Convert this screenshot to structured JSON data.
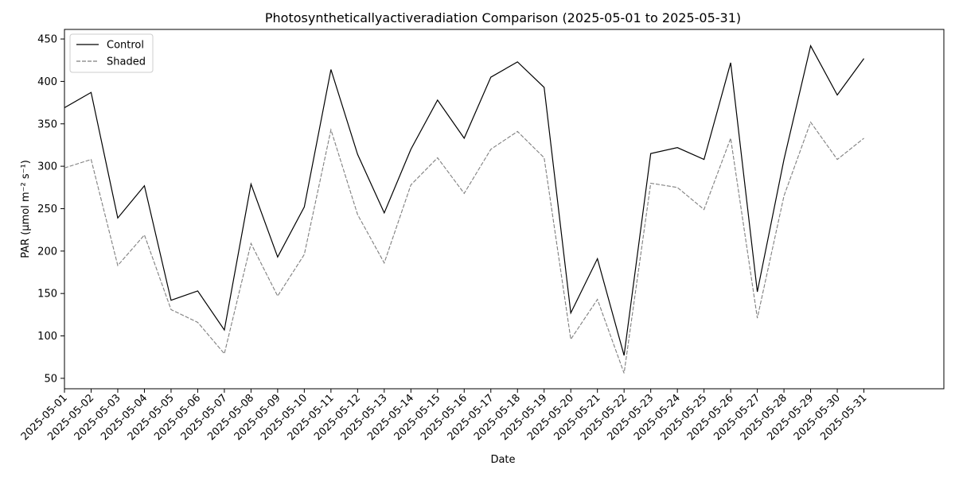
{
  "chart_data": {
    "type": "line",
    "title": "Photosyntheticallyactiveradiation Comparison (2025-05-01 to 2025-05-31)",
    "xlabel": "Date",
    "ylabel": "PAR (µmol m⁻² s⁻¹)",
    "x": [
      "2025-05-01",
      "2025-05-02",
      "2025-05-03",
      "2025-05-04",
      "2025-05-05",
      "2025-05-06",
      "2025-05-07",
      "2025-05-08",
      "2025-05-09",
      "2025-05-10",
      "2025-05-11",
      "2025-05-12",
      "2025-05-13",
      "2025-05-14",
      "2025-05-15",
      "2025-05-16",
      "2025-05-17",
      "2025-05-18",
      "2025-05-19",
      "2025-05-20",
      "2025-05-21",
      "2025-05-22",
      "2025-05-23",
      "2025-05-24",
      "2025-05-25",
      "2025-05-26",
      "2025-05-27",
      "2025-05-28",
      "2025-05-29",
      "2025-05-30",
      "2025-05-31"
    ],
    "series": [
      {
        "name": "Control",
        "color": "#000000",
        "style": "solid",
        "values": [
          369,
          387,
          239,
          277,
          142,
          153,
          107,
          279,
          193,
          252,
          414,
          314,
          245,
          320,
          378,
          333,
          405,
          423,
          393,
          127,
          191,
          77,
          315,
          322,
          308,
          422,
          152,
          308,
          442,
          384,
          427
        ]
      },
      {
        "name": "Shaded",
        "color": "#7f7f7f",
        "style": "dashed",
        "values": [
          298,
          308,
          183,
          219,
          131,
          116,
          79,
          209,
          147,
          196,
          343,
          243,
          186,
          278,
          310,
          268,
          320,
          341,
          310,
          96,
          143,
          56,
          280,
          275,
          249,
          333,
          121,
          265,
          352,
          308,
          333
        ]
      }
    ],
    "yticks": [
      50,
      100,
      150,
      200,
      250,
      300,
      350,
      400,
      450
    ],
    "ylim": [
      37.7,
      461.3
    ],
    "xlim_days": [
      0,
      33
    ],
    "grid": false,
    "legend": "top-left"
  }
}
